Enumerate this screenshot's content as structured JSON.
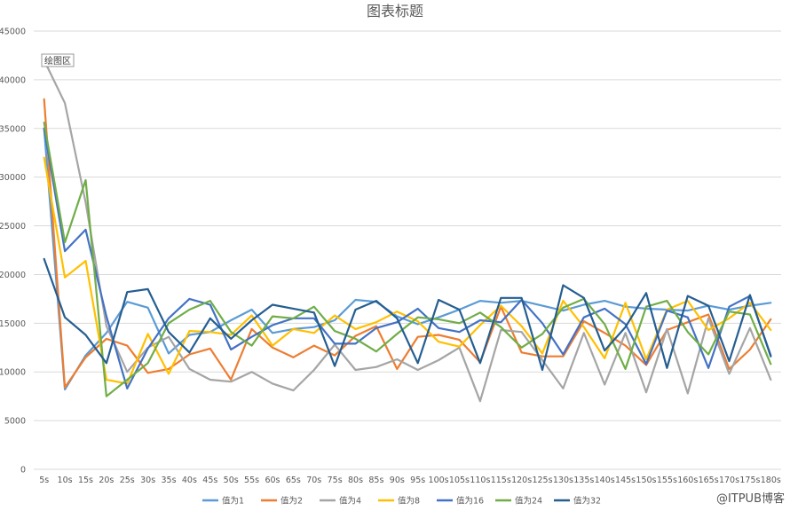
{
  "chart_data": {
    "type": "line",
    "title": "图表标题",
    "annotation": "绘图区",
    "xlabel": "",
    "ylabel": "",
    "ylim": [
      0,
      45000
    ],
    "ytick_step": 5000,
    "grid": true,
    "legend_position": "bottom",
    "categories": [
      "5s",
      "10s",
      "15s",
      "20s",
      "25s",
      "30s",
      "35s",
      "40s",
      "45s",
      "50s",
      "55s",
      "60s",
      "65s",
      "70s",
      "75s",
      "80s",
      "85s",
      "90s",
      "95s",
      "100s",
      "105s",
      "110s",
      "115s",
      "120s",
      "125s",
      "130s",
      "135s",
      "140s",
      "145s",
      "150s",
      "155s",
      "160s",
      "165s",
      "170s",
      "175s",
      "180s"
    ],
    "series": [
      {
        "name": "值为1",
        "color": "#5b9bd5",
        "values": [
          35000,
          8200,
          11700,
          14000,
          17200,
          16600,
          11900,
          13800,
          14100,
          15300,
          16400,
          14000,
          14400,
          14600,
          15300,
          17400,
          17200,
          15700,
          14900,
          15600,
          16400,
          17300,
          17100,
          17300,
          16800,
          16300,
          16900,
          17300,
          16700,
          16500,
          16400,
          16300,
          16800,
          16400,
          16800,
          17100
        ]
      },
      {
        "name": "值为2",
        "color": "#ed7d31",
        "values": [
          38000,
          8400,
          11500,
          13400,
          12700,
          9900,
          10300,
          11800,
          12400,
          9200,
          14400,
          12500,
          11500,
          12700,
          11700,
          13700,
          14700,
          10300,
          13600,
          13800,
          13300,
          11000,
          16700,
          12000,
          11600,
          11600,
          15200,
          14000,
          12700,
          10700,
          14300,
          15100,
          15900,
          10300,
          12300,
          15400
        ]
      },
      {
        "name": "值为4",
        "color": "#a5a5a5",
        "values": [
          42000,
          37600,
          27400,
          14700,
          10000,
          12500,
          13600,
          10300,
          9200,
          9000,
          10000,
          8800,
          8100,
          10200,
          12800,
          10200,
          10500,
          11300,
          10200,
          11200,
          12500,
          7000,
          14300,
          14100,
          11200,
          8300,
          14000,
          8700,
          14000,
          7900,
          14400,
          7800,
          15500,
          9800,
          14500,
          9200
        ]
      },
      {
        "name": "值为8",
        "color": "#ffc000",
        "values": [
          32000,
          19700,
          21400,
          9200,
          8800,
          13900,
          9800,
          14200,
          14100,
          13800,
          15800,
          12700,
          14400,
          14000,
          15800,
          14400,
          15100,
          16200,
          15200,
          13100,
          12600,
          14800,
          16800,
          14700,
          11900,
          17300,
          14600,
          11400,
          17100,
          11300,
          16400,
          17300,
          14300,
          15500,
          17100,
          14300
        ]
      },
      {
        "name": "值为16",
        "color": "#4472c4",
        "values": [
          35000,
          22400,
          24600,
          15700,
          8300,
          12400,
          15500,
          17500,
          16900,
          12300,
          13600,
          14800,
          15500,
          15500,
          12900,
          12900,
          14500,
          15100,
          16500,
          14500,
          14100,
          15300,
          15100,
          17400,
          15000,
          11800,
          15600,
          16500,
          14900,
          10800,
          16300,
          15600,
          10400,
          16700,
          17800,
          11700
        ]
      },
      {
        "name": "值为24",
        "color": "#70ad47",
        "values": [
          35600,
          23300,
          29700,
          7500,
          9200,
          10900,
          15000,
          16400,
          17300,
          14100,
          12700,
          15700,
          15500,
          16700,
          14200,
          13400,
          12100,
          13900,
          15600,
          15400,
          15000,
          16100,
          14600,
          12500,
          13900,
          16600,
          17500,
          14900,
          10300,
          16700,
          17300,
          14100,
          11800,
          16200,
          15900,
          10800
        ]
      },
      {
        "name": "值为32",
        "color": "#255e91",
        "values": [
          21600,
          15600,
          13800,
          10900,
          18200,
          18500,
          14100,
          12000,
          15500,
          13400,
          15300,
          16900,
          16500,
          16100,
          10600,
          16400,
          17300,
          15500,
          10900,
          17400,
          16400,
          10900,
          17600,
          17600,
          10200,
          18900,
          17600,
          12200,
          14600,
          18100,
          10400,
          17800,
          16800,
          11100,
          17900,
          11600
        ]
      }
    ]
  },
  "watermark": "@ITPUB博客"
}
